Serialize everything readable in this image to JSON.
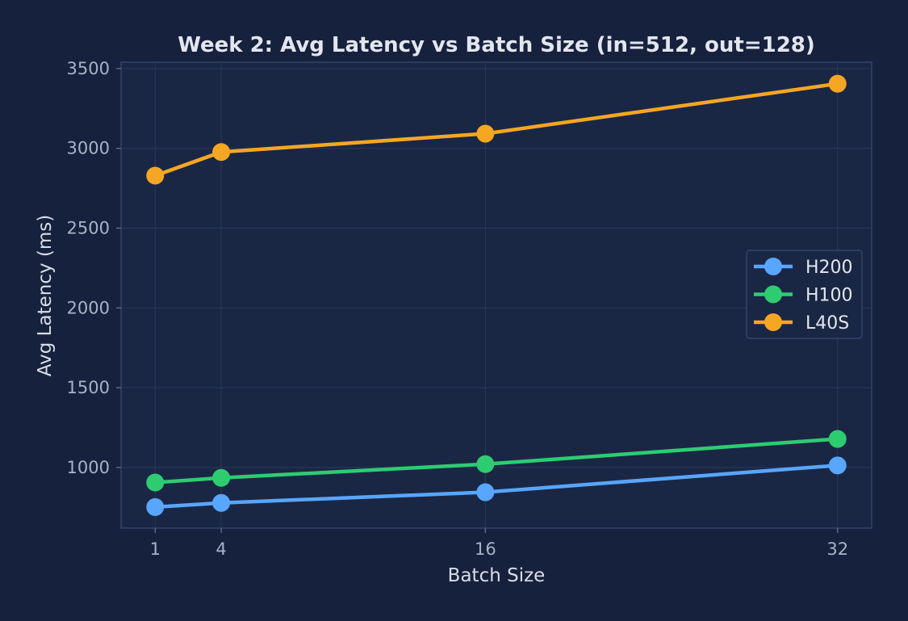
{
  "chart_data": {
    "type": "line",
    "title": "Week 2: Avg Latency vs Batch Size (in=512, out=128)",
    "xlabel": "Batch Size",
    "ylabel": "Avg Latency (ms)",
    "x": [
      1,
      4,
      16,
      32
    ],
    "xticks": [
      "1",
      "4",
      "16",
      "32"
    ],
    "xlim": [
      -0.55,
      33.55
    ],
    "ylim": [
      620,
      3540
    ],
    "yticks": [
      1000,
      1500,
      2000,
      2500,
      3000,
      3500
    ],
    "grid": true,
    "legend_position": "center-right",
    "series": [
      {
        "name": "H200",
        "color": "#58a6ff",
        "values": [
          752,
          778,
          845,
          1013
        ]
      },
      {
        "name": "H100",
        "color": "#2ecc71",
        "values": [
          906,
          935,
          1021,
          1179
        ]
      },
      {
        "name": "L40S",
        "color": "#f5a623",
        "values": [
          2829,
          2977,
          3092,
          3405
        ]
      }
    ]
  }
}
